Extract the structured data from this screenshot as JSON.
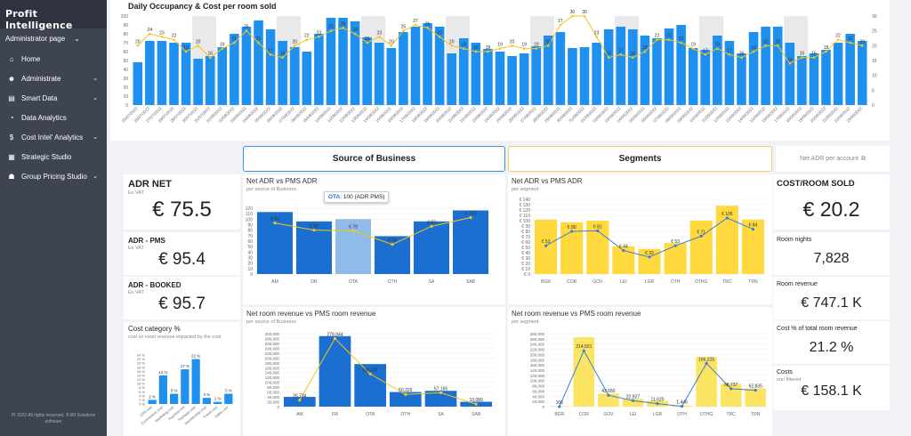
{
  "sidebar": {
    "brand": "Profit Intelligence",
    "admin": "Administrator page",
    "footer": "PI 2022 All rights reserved. ® BII Solutions software",
    "items": [
      {
        "label": "Home",
        "icon": "home-icon",
        "glyph": "⌂",
        "chev": false
      },
      {
        "label": "Administrate",
        "icon": "users-icon",
        "glyph": "☻",
        "chev": true
      },
      {
        "label": "Smart Data",
        "icon": "database-icon",
        "glyph": "▤",
        "chev": true
      },
      {
        "label": "Data Analytics",
        "icon": "analytics-icon",
        "glyph": "◔",
        "chev": false
      },
      {
        "label": "Cost Intel' Analytics",
        "icon": "dollar-icon",
        "glyph": "$",
        "chev": true
      },
      {
        "label": "Strategic Studio",
        "icon": "grid-icon",
        "glyph": "▦",
        "chev": false
      },
      {
        "label": "Group Pricing Studio",
        "icon": "group-icon",
        "glyph": "☗",
        "chev": true
      }
    ]
  },
  "top_chart": {
    "title": "Daily Occupancy & Cost per room sold"
  },
  "tabs": {
    "source": "Source of Business",
    "segments": "Segments",
    "link": "Net ADR per account"
  },
  "kpi_left": {
    "adr_net_label": "ADR NET",
    "adr_net_sub": "Ex VAT",
    "adr_net_value": "€ 75.5",
    "adr_pms_label": "ADR - PMS",
    "adr_pms_sub": "Ex VAT",
    "adr_pms_value": "€ 95.4",
    "adr_booked_label": "ADR - BOOKED",
    "adr_booked_sub": "Ex VAT",
    "adr_booked_value": "€ 95.7"
  },
  "cost_category": {
    "title": "Cost category %",
    "subtitle": "cost vs room revenue impacted by the cost"
  },
  "kpi_right": {
    "cost_title": "COST/ROOM SOLD",
    "cost_value": "€ 20.2",
    "nights_label": "Room nights",
    "nights_value": "7,828",
    "revenue_label": "Room revenue",
    "revenue_value": "€ 747.1 K",
    "pct_label": "Cost % of total room revenue",
    "pct_value": "21.2 %",
    "costs_label": "Costs",
    "costs_sub": "non filtered",
    "costs_value": "€ 158.1 K"
  },
  "panels": {
    "sob_adr_title": "Net ADR vs PMS ADR",
    "sob_adr_sub": "per source of Business",
    "tooltip_label": "OTA",
    "tooltip_value": ": 100 (ADR PMS)",
    "seg_adr_title": "Net ADR vs PMS ADR",
    "seg_adr_sub": "per segment",
    "sob_rev_title": "Net room revenue vs PMS room revenue",
    "sob_rev_sub": "per source of Business",
    "seg_rev_title": "Net room revenue vs PMS room revenue",
    "seg_rev_sub": "per segment"
  },
  "colors": {
    "blue": "#1e90f0",
    "dark_blue": "#1a6fd0",
    "light_blue": "#8fbbe8",
    "yellow": "#ffd93d",
    "orange_line": "#f5c518",
    "sidebar": "#3f4452"
  },
  "chart_data": [
    {
      "type": "bar",
      "id": "daily",
      "title": "Daily Occupancy & Cost per room sold",
      "ylim": [
        0,
        100
      ],
      "y2lim": [
        0,
        30
      ],
      "categories": [
        "25/07/2022",
        "26/07/2022",
        "27/07/2022",
        "28/07/2022",
        "29/07/2022",
        "30/07/2022",
        "31/07/2022",
        "01/08/2022",
        "02/08/2022",
        "03/08/2022",
        "04/08/2022",
        "05/08/2022",
        "06/08/2022",
        "07/08/2022",
        "08/08/2022",
        "09/08/2022",
        "10/08/2022",
        "11/08/2022",
        "12/08/2022",
        "13/08/2022",
        "14/08/2022",
        "15/08/2022",
        "16/08/2022",
        "17/08/2022",
        "18/08/2022",
        "19/08/2022",
        "20/08/2022",
        "21/08/2022",
        "22/08/2022",
        "23/08/2022",
        "24/08/2022",
        "25/08/2022",
        "26/08/2022",
        "27/08/2022",
        "28/08/2022",
        "29/08/2022",
        "30/08/2022",
        "31/08/2022",
        "01/09/2022",
        "02/09/2022",
        "03/09/2022",
        "04/09/2022",
        "05/09/2022",
        "06/09/2022",
        "07/09/2022",
        "08/09/2022",
        "09/09/2022",
        "10/09/2022",
        "11/09/2022",
        "12/09/2022",
        "13/09/2022",
        "14/09/2022",
        "15/09/2022",
        "16/09/2022",
        "17/09/2022",
        "18/09/2022",
        "19/09/2022",
        "20/09/2022",
        "21/09/2022",
        "22/09/2022",
        "23/09/2022"
      ],
      "series": [
        {
          "name": "Occupancy",
          "values": [
            48,
            72,
            72,
            70,
            70,
            52,
            55,
            65,
            80,
            88,
            95,
            85,
            72,
            65,
            60,
            80,
            98,
            98,
            94,
            76,
            70,
            64,
            82,
            88,
            92,
            88,
            58,
            75,
            70,
            63,
            60,
            55,
            58,
            66,
            78,
            82,
            64,
            65,
            70,
            85,
            88,
            85,
            78,
            75,
            86,
            90,
            64,
            62,
            78,
            72,
            58,
            82,
            88,
            88,
            70,
            55,
            58,
            62,
            70,
            80,
            72
          ]
        },
        {
          "name": "Cost per room",
          "values": [
            20,
            24,
            23,
            22,
            18,
            20,
            16,
            19,
            21,
            25,
            21,
            17,
            16,
            20,
            22,
            23,
            25,
            26,
            24,
            21,
            23,
            20,
            25,
            27,
            26,
            23,
            20,
            19,
            18,
            18,
            19,
            20,
            19,
            19,
            20,
            27,
            30,
            30,
            23,
            16,
            17,
            16,
            18,
            22,
            22,
            21,
            19,
            17,
            19,
            17,
            16,
            18,
            20,
            20,
            14,
            16,
            16,
            18,
            22,
            21,
            20
          ]
        }
      ],
      "labels": [
        20,
        24,
        23,
        22,
        18,
        20,
        16,
        19,
        21,
        25,
        21,
        17,
        16,
        20,
        22,
        23,
        25,
        26,
        24,
        21,
        23,
        20,
        25,
        27,
        26,
        23,
        20,
        19,
        18,
        18,
        19,
        20,
        19,
        19,
        20,
        27,
        30,
        30,
        23,
        16,
        17,
        16,
        18,
        22,
        22,
        21,
        19,
        17,
        19,
        17,
        16,
        18,
        20,
        20,
        14,
        16,
        16,
        18,
        22,
        21,
        20
      ],
      "weekend_bands": [
        5,
        6,
        12,
        13,
        19,
        20,
        26,
        27,
        33,
        34,
        40,
        41,
        47,
        48,
        54,
        55
      ]
    },
    {
      "type": "bar",
      "id": "sob_adr",
      "categories": [
        "AM",
        "DR",
        "OTA",
        "OTH",
        "SA",
        "SAB"
      ],
      "ylim": [
        0,
        120
      ],
      "yticks": [
        0,
        10,
        20,
        30,
        40,
        50,
        60,
        70,
        80,
        90,
        100,
        110,
        120
      ],
      "series": [
        {
          "name": "ADR PMS",
          "values": [
            113,
            96,
            100,
            69,
            96,
            116
          ]
        },
        {
          "name": "Net ADR",
          "values": [
            93,
            80,
            79,
            54,
            87,
            103
          ]
        }
      ],
      "labels": [
        "€ 93",
        "€ 80",
        "€ 79",
        "€ 54",
        "€ 87",
        "€ 103"
      ]
    },
    {
      "type": "bar",
      "id": "seg_adr",
      "categories": [
        "BGR",
        "COR",
        "GOV",
        "LEI",
        "LGR",
        "OTH",
        "OTHG",
        "TRC",
        "TRN"
      ],
      "ylim": [
        0,
        140
      ],
      "yticks": [
        0,
        10,
        20,
        30,
        40,
        50,
        60,
        70,
        80,
        90,
        100,
        110,
        120,
        130,
        140
      ],
      "series": [
        {
          "name": "ADR PMS",
          "values": [
            102,
            97,
            100,
            52,
            47,
            58,
            100,
            128,
            102
          ]
        },
        {
          "name": "Net ADR",
          "values": [
            53,
            80,
            81,
            44,
            32,
            53,
            71,
            105,
            84
          ]
        }
      ],
      "labels": [
        "€ 53",
        "€ 80",
        "€ 81",
        "€ 44",
        "€ 32",
        "€ 53",
        "€ 71",
        "€ 105",
        "€ 84"
      ]
    },
    {
      "type": "bar",
      "id": "sob_rev",
      "categories": [
        "AM",
        "DR",
        "OTA",
        "OTH",
        "SA",
        "SAB"
      ],
      "ylim": [
        0,
        300000
      ],
      "yticks": [
        0,
        20000,
        40000,
        60000,
        80000,
        100000,
        120000,
        140000,
        160000,
        180000,
        200000,
        220000,
        240000,
        260000,
        280000,
        300000
      ],
      "series": [
        {
          "name": "PMS room revenue",
          "values": [
            40000,
            290000,
            175000,
            60000,
            65000,
            20000
          ]
        },
        {
          "name": "Net room revenue",
          "values": [
            26734,
            279944,
            134331,
            50320,
            57165,
            10089
          ]
        }
      ],
      "labels": [
        "26,734",
        "279,944",
        "134,331",
        "50,320",
        "57,165",
        "10,089"
      ]
    },
    {
      "type": "bar",
      "id": "seg_rev",
      "categories": [
        "BGR",
        "COR",
        "GOV",
        "LEI",
        "LGR",
        "OTH",
        "OTHG",
        "TRC",
        "TRN"
      ],
      "ylim": [
        0,
        280000
      ],
      "yticks": [
        0,
        20000,
        40000,
        60000,
        80000,
        100000,
        120000,
        140000,
        160000,
        180000,
        200000,
        220000,
        240000,
        260000,
        280000
      ],
      "series": [
        {
          "name": "PMS room revenue",
          "values": [
            2000,
            266000,
            50000,
            30000,
            22000,
            4000,
            190000,
            88000,
            70000
          ]
        },
        {
          "name": "Net room revenue",
          "values": [
            106,
            214501,
            43650,
            22927,
            11620,
            1446,
            166225,
            68737,
            62835
          ]
        }
      ],
      "labels": [
        "106",
        "214,501",
        "43,650",
        "22,927",
        "11,620",
        "1,446",
        "166,225",
        "68,737",
        "62,835"
      ]
    },
    {
      "type": "bar",
      "id": "cost_cat",
      "categories": [
        "OTA cost",
        "Commission cost",
        "Marketing cost",
        "Payment fee",
        "Package cost",
        "Membership cost",
        "Travel cost",
        "Sales cost"
      ],
      "ylim": [
        0,
        24
      ],
      "yticks": [
        0,
        2,
        4,
        6,
        8,
        10,
        12,
        14,
        16,
        18,
        20,
        22,
        24
      ],
      "series": [
        {
          "name": "Cost %",
          "values": [
            2,
            14,
            5,
            17,
            22,
            3,
            1,
            5
          ]
        }
      ],
      "labels": [
        "2 %",
        "14 %",
        "5 %",
        "17 %",
        "22 %",
        "3 %",
        "1 %",
        "5 %"
      ]
    }
  ]
}
